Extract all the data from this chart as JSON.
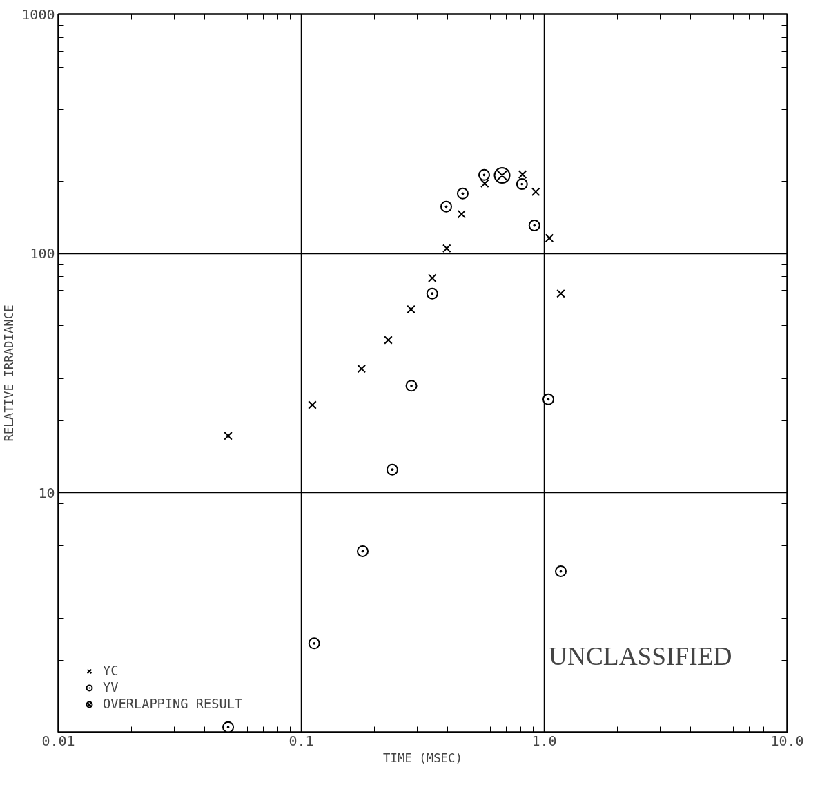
{
  "chart_data": {
    "type": "scatter",
    "xlabel": "TIME (MSEC)",
    "ylabel": "RELATIVE IRRADIANCE",
    "log": "xy",
    "xlim": [
      0.01,
      10
    ],
    "ylim": [
      1,
      1000
    ],
    "xticks": [
      0.01,
      0.1,
      {
        "value": 1,
        "label": "1.0"
      },
      {
        "value": 10,
        "label": "10.0"
      }
    ],
    "yticks": [
      10,
      100,
      1000
    ],
    "grid": true,
    "legend": "bottom left",
    "annotations": [
      "UNCLASSIFIED"
    ],
    "series": [
      {
        "name": "YC",
        "color": "#000000",
        "marker": "cross",
        "x": [
          0.05,
          0.111,
          0.177,
          0.228,
          0.283,
          0.346,
          0.397,
          0.457,
          0.569,
          0.814,
          0.923,
          1.05,
          1.17
        ],
        "values": [
          17.3,
          23.3,
          33,
          43.5,
          58.5,
          79,
          105,
          146,
          196,
          214,
          181,
          116,
          68
        ]
      },
      {
        "name": "YV",
        "color": "#000000",
        "marker": "circle",
        "x": [
          0.05,
          0.113,
          0.179,
          0.237,
          0.284,
          0.346,
          0.395,
          0.462,
          0.566,
          0.81,
          0.911,
          1.04,
          1.17
        ],
        "values": [
          1.05,
          2.35,
          5.7,
          12.5,
          28,
          68,
          157,
          178,
          213,
          195,
          131,
          24.6,
          4.7
        ]
      },
      {
        "name": "OVERLAPPING RESULT",
        "color": "#000000",
        "x": [
          0.671
        ],
        "values": [
          212
        ]
      }
    ]
  }
}
